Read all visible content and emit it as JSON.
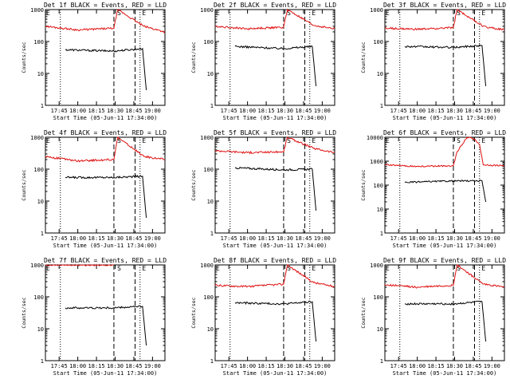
{
  "colors": {
    "events": "#000000",
    "lld": "#e01010",
    "background": "#ffffff",
    "axis": "#000000"
  },
  "chart_data": [
    {
      "type": "line",
      "title": "Det 1f BLACK = Events, RED = LLD",
      "xlabel": "Start Time (05-Jun-11 17:34:00)",
      "ylabel": "Counts/sec",
      "yscale": "log",
      "ylim": [
        1,
        1000
      ],
      "x_ticks": [
        "17:45",
        "18:00",
        "18:15",
        "18:30",
        "18:45",
        "19:00"
      ],
      "y_ticks": [
        "1",
        "10",
        "100",
        "1000"
      ],
      "markers": [
        {
          "label": "E",
          "time": "17:34"
        },
        {
          "label": "S",
          "time": "18:31"
        },
        {
          "label": "E",
          "time": "18:51"
        }
      ],
      "event_markers": [
        "17:46",
        "18:29",
        "18:46",
        "18:50"
      ],
      "series": [
        {
          "name": "Events",
          "color": "#000000",
          "x": [
            "17:50",
            "18:29",
            "18:52",
            "18:55"
          ],
          "y": [
            55,
            50,
            60,
            3
          ]
        },
        {
          "name": "LLD",
          "color": "#e01010",
          "x": [
            "17:34",
            "18:00",
            "18:29",
            "18:32",
            "18:53",
            "19:10"
          ],
          "y": [
            300,
            230,
            260,
            1000,
            300,
            200
          ]
        }
      ]
    },
    {
      "type": "line",
      "title": "Det 2f BLACK = Events, RED = LLD",
      "xlabel": "Start Time (05-Jun-11 17:34:00)",
      "ylabel": "Counts/sec",
      "yscale": "log",
      "ylim": [
        1,
        1000
      ],
      "x_ticks": [
        "17:45",
        "18:00",
        "18:15",
        "18:30",
        "18:45",
        "19:00"
      ],
      "y_ticks": [
        "1",
        "10",
        "100",
        "1000"
      ],
      "markers": [
        {
          "label": "E",
          "time": "17:34"
        },
        {
          "label": "S",
          "time": "18:31"
        },
        {
          "label": "E",
          "time": "18:51"
        }
      ],
      "event_markers": [
        "17:46",
        "18:29",
        "18:46",
        "18:50"
      ],
      "series": [
        {
          "name": "Events",
          "color": "#000000",
          "x": [
            "17:50",
            "18:29",
            "18:52",
            "18:55"
          ],
          "y": [
            70,
            60,
            70,
            4
          ]
        },
        {
          "name": "LLD",
          "color": "#e01010",
          "x": [
            "17:34",
            "18:00",
            "18:29",
            "18:32",
            "18:53",
            "19:10"
          ],
          "y": [
            300,
            250,
            280,
            1000,
            320,
            250
          ]
        }
      ]
    },
    {
      "type": "line",
      "title": "Det 3f BLACK = Events, RED = LLD",
      "xlabel": "Start Time (05-Jun-11 17:34:00)",
      "ylabel": "Counts/sec",
      "yscale": "log",
      "ylim": [
        1,
        1000
      ],
      "x_ticks": [
        "17:45",
        "18:00",
        "18:15",
        "18:30",
        "18:45",
        "19:00"
      ],
      "y_ticks": [
        "1",
        "10",
        "100",
        "1000"
      ],
      "markers": [
        {
          "label": "E",
          "time": "17:34"
        },
        {
          "label": "S",
          "time": "18:31"
        },
        {
          "label": "E",
          "time": "18:51"
        }
      ],
      "event_markers": [
        "17:46",
        "18:29",
        "18:46",
        "18:50"
      ],
      "series": [
        {
          "name": "Events",
          "color": "#000000",
          "x": [
            "17:50",
            "18:29",
            "18:52",
            "18:55"
          ],
          "y": [
            70,
            65,
            75,
            4
          ]
        },
        {
          "name": "LLD",
          "color": "#e01010",
          "x": [
            "17:34",
            "18:00",
            "18:29",
            "18:32",
            "18:53",
            "19:10"
          ],
          "y": [
            260,
            240,
            270,
            1000,
            300,
            230
          ]
        }
      ]
    },
    {
      "type": "line",
      "title": "Det 4f BLACK = Events, RED = LLD",
      "xlabel": "Start Time (05-Jun-11 17:34:00)",
      "ylabel": "Counts/sec",
      "yscale": "log",
      "ylim": [
        1,
        1000
      ],
      "x_ticks": [
        "17:45",
        "18:00",
        "18:15",
        "18:30",
        "18:45",
        "19:00"
      ],
      "y_ticks": [
        "1",
        "10",
        "100",
        "1000"
      ],
      "markers": [
        {
          "label": "E",
          "time": "17:34"
        },
        {
          "label": "S",
          "time": "18:31"
        },
        {
          "label": "E",
          "time": "18:51"
        }
      ],
      "event_markers": [
        "17:46",
        "18:29",
        "18:46",
        "18:50"
      ],
      "series": [
        {
          "name": "Events",
          "color": "#000000",
          "x": [
            "17:50",
            "18:29",
            "18:52",
            "18:55"
          ],
          "y": [
            55,
            55,
            60,
            3
          ]
        },
        {
          "name": "LLD",
          "color": "#e01010",
          "x": [
            "17:34",
            "18:00",
            "18:29",
            "18:32",
            "18:53",
            "19:10"
          ],
          "y": [
            250,
            180,
            200,
            1000,
            250,
            200
          ]
        }
      ]
    },
    {
      "type": "line",
      "title": "Det 5f BLACK = Events, RED = LLD",
      "xlabel": "Start Time (05-Jun-11 17:34:00)",
      "ylabel": "Counts/sec",
      "yscale": "log",
      "ylim": [
        1,
        1000
      ],
      "x_ticks": [
        "17:45",
        "18:00",
        "18:15",
        "18:30",
        "18:45",
        "19:00"
      ],
      "y_ticks": [
        "1",
        "10",
        "100",
        "1000"
      ],
      "markers": [
        {
          "label": "E",
          "time": "17:34"
        },
        {
          "label": "S",
          "time": "18:31"
        },
        {
          "label": "E",
          "time": "18:51"
        }
      ],
      "event_markers": [
        "17:46",
        "18:29",
        "18:46",
        "18:50"
      ],
      "series": [
        {
          "name": "Events",
          "color": "#000000",
          "x": [
            "17:50",
            "18:29",
            "18:52",
            "18:55"
          ],
          "y": [
            110,
            95,
            100,
            5
          ]
        },
        {
          "name": "LLD",
          "color": "#e01010",
          "x": [
            "17:34",
            "18:00",
            "18:29",
            "18:32",
            "18:53",
            "19:10"
          ],
          "y": [
            380,
            330,
            350,
            1000,
            450,
            330
          ]
        }
      ]
    },
    {
      "type": "line",
      "title": "Det 6f BLACK = Events, RED = LLD",
      "xlabel": "Start Time (05-Jun-11 17:34:00)",
      "ylabel": "Counts/sec",
      "yscale": "log",
      "ylim": [
        1,
        10000
      ],
      "x_ticks": [
        "17:45",
        "18:00",
        "18:15",
        "18:30",
        "18:45",
        "19:00"
      ],
      "y_ticks": [
        "1",
        "10",
        "100",
        "1000",
        "10000"
      ],
      "markers": [
        {
          "label": "E",
          "time": "17:34"
        },
        {
          "label": "S",
          "time": "18:31"
        },
        {
          "label": "E",
          "time": "18:51"
        }
      ],
      "event_markers": [
        "17:46",
        "18:29",
        "18:46",
        "18:50"
      ],
      "series": [
        {
          "name": "Events",
          "color": "#000000",
          "x": [
            "17:50",
            "18:29",
            "18:52",
            "18:55"
          ],
          "y": [
            130,
            150,
            150,
            20
          ]
        },
        {
          "name": "LLD",
          "color": "#e01010",
          "x": [
            "17:34",
            "18:00",
            "18:29",
            "18:32",
            "18:40",
            "18:45",
            "18:50",
            "18:53",
            "19:10"
          ],
          "y": [
            700,
            600,
            650,
            2500,
            10000,
            9000,
            5000,
            700,
            650
          ]
        }
      ]
    },
    {
      "type": "line",
      "title": "Det 7f BLACK = Events, RED = LLD",
      "xlabel": "Start Time (05-Jun-11 17:34:00)",
      "ylabel": "Counts/sec",
      "yscale": "log",
      "ylim": [
        1,
        1000
      ],
      "x_ticks": [
        "17:45",
        "18:00",
        "18:15",
        "18:30",
        "18:45",
        "19:00"
      ],
      "y_ticks": [
        "1",
        "10",
        "100",
        "1000"
      ],
      "markers": [
        {
          "label": "E",
          "time": "17:34"
        },
        {
          "label": "S",
          "time": "18:31"
        },
        {
          "label": "E",
          "time": "18:51"
        }
      ],
      "event_markers": [
        "17:46",
        "18:29",
        "18:46",
        "18:50"
      ],
      "series": [
        {
          "name": "Events",
          "color": "#000000",
          "x": [
            "17:50",
            "18:29",
            "18:52",
            "18:55"
          ],
          "y": [
            45,
            45,
            50,
            3
          ]
        },
        {
          "name": "LLD",
          "color": "#e01010",
          "x": [
            "17:34",
            "18:29"
          ],
          "y": [
            1000,
            1000
          ]
        }
      ]
    },
    {
      "type": "line",
      "title": "Det 8f BLACK = Events, RED = LLD",
      "xlabel": "Start Time (05-Jun-11 17:34:00)",
      "ylabel": "Counts/sec",
      "yscale": "log",
      "ylim": [
        1,
        1000
      ],
      "x_ticks": [
        "17:45",
        "18:00",
        "18:15",
        "18:30",
        "18:45",
        "19:00"
      ],
      "y_ticks": [
        "1",
        "10",
        "100",
        "1000"
      ],
      "markers": [
        {
          "label": "E",
          "time": "17:34"
        },
        {
          "label": "S",
          "time": "18:31"
        },
        {
          "label": "E",
          "time": "18:51"
        }
      ],
      "event_markers": [
        "17:46",
        "18:29",
        "18:46",
        "18:50"
      ],
      "series": [
        {
          "name": "Events",
          "color": "#000000",
          "x": [
            "17:50",
            "18:29",
            "18:52",
            "18:55"
          ],
          "y": [
            65,
            60,
            70,
            4
          ]
        },
        {
          "name": "LLD",
          "color": "#e01010",
          "x": [
            "17:34",
            "18:00",
            "18:29",
            "18:32",
            "18:53",
            "19:10"
          ],
          "y": [
            230,
            210,
            250,
            1000,
            280,
            210
          ]
        }
      ]
    },
    {
      "type": "line",
      "title": "Det 9f BLACK = Events, RED = LLD",
      "xlabel": "Start Time (05-Jun-11 17:34:00)",
      "ylabel": "Counts/sec",
      "yscale": "log",
      "ylim": [
        1,
        1000
      ],
      "x_ticks": [
        "17:45",
        "18:00",
        "18:15",
        "18:30",
        "18:45",
        "19:00"
      ],
      "y_ticks": [
        "1",
        "10",
        "100",
        "1000"
      ],
      "markers": [
        {
          "label": "E",
          "time": "17:34"
        },
        {
          "label": "S",
          "time": "18:31"
        },
        {
          "label": "E",
          "time": "18:51"
        }
      ],
      "event_markers": [
        "17:46",
        "18:29",
        "18:46",
        "18:50"
      ],
      "series": [
        {
          "name": "Events",
          "color": "#000000",
          "x": [
            "17:50",
            "18:29",
            "18:52",
            "18:55"
          ],
          "y": [
            60,
            60,
            70,
            4
          ]
        },
        {
          "name": "LLD",
          "color": "#e01010",
          "x": [
            "17:34",
            "18:00",
            "18:29",
            "18:32",
            "18:53",
            "19:10"
          ],
          "y": [
            240,
            200,
            230,
            1000,
            250,
            200
          ]
        }
      ]
    }
  ]
}
